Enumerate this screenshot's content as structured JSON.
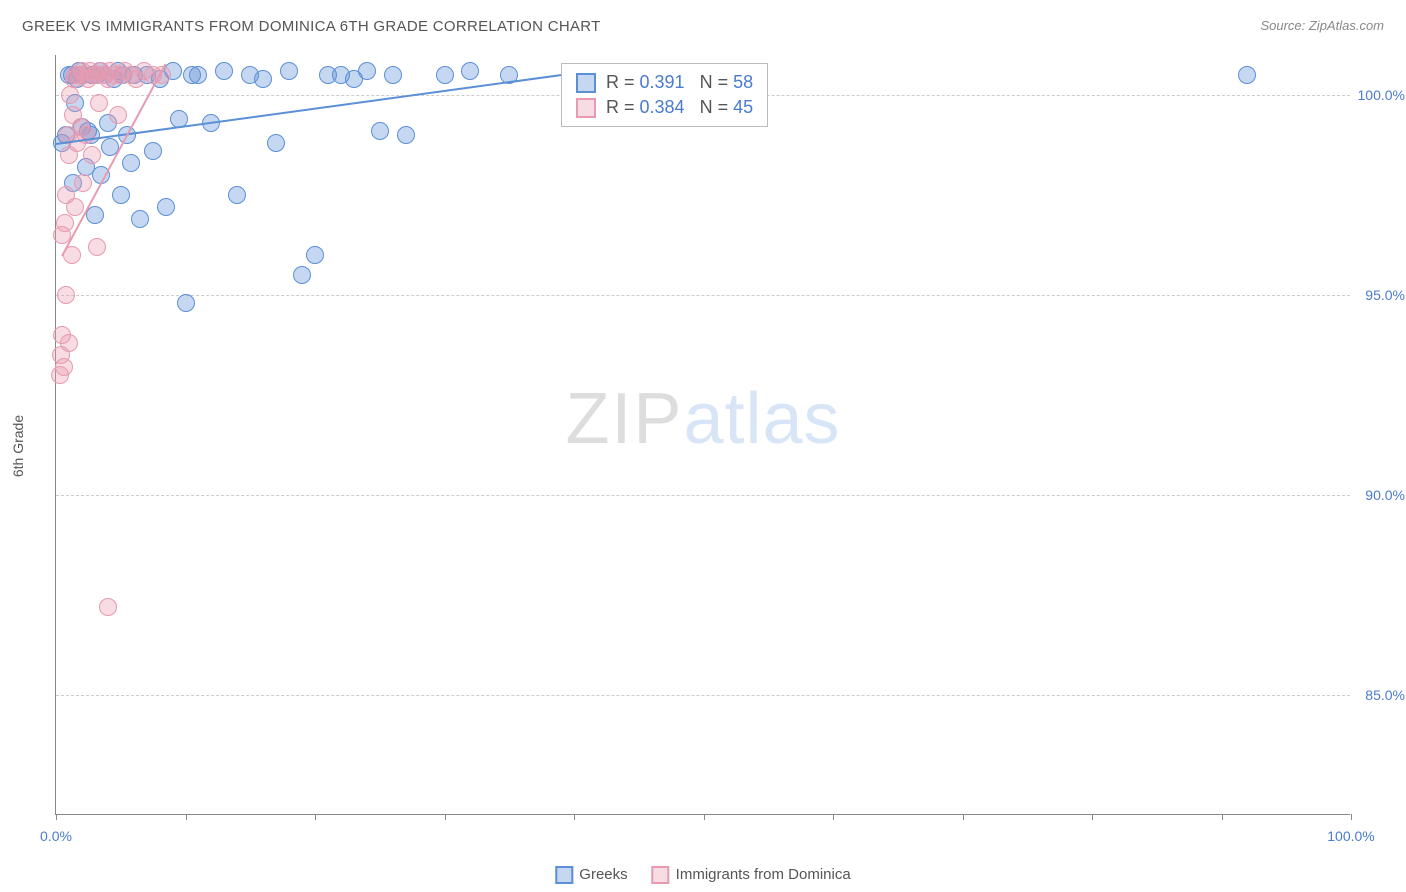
{
  "title": "GREEK VS IMMIGRANTS FROM DOMINICA 6TH GRADE CORRELATION CHART",
  "source": "Source: ZipAtlas.com",
  "y_axis_title": "6th Grade",
  "watermark": {
    "part1": "ZIP",
    "part2": "atlas"
  },
  "chart": {
    "type": "scatter",
    "background_color": "#ffffff",
    "grid_color": "#cccccc",
    "axis_color": "#888888",
    "x_range": [
      0,
      100
    ],
    "y_range": [
      82,
      101
    ],
    "y_ticks": [
      {
        "value": 85.0,
        "label": "85.0%"
      },
      {
        "value": 90.0,
        "label": "90.0%"
      },
      {
        "value": 95.0,
        "label": "95.0%"
      },
      {
        "value": 100.0,
        "label": "100.0%"
      }
    ],
    "x_ticks": [
      0,
      10,
      20,
      30,
      40,
      50,
      60,
      70,
      80,
      90,
      100
    ],
    "x_labels": [
      {
        "value": 0,
        "label": "0.0%"
      },
      {
        "value": 100,
        "label": "100.0%"
      }
    ],
    "marker_radius": 9,
    "marker_stroke_width": 1.5,
    "marker_fill_opacity": 0.35,
    "series": [
      {
        "name": "Greeks",
        "color": "#5b8fd6",
        "fill": "rgba(91,143,214,0.35)",
        "R": "0.391",
        "N": "58",
        "trend": {
          "x1": 0,
          "y1": 98.8,
          "x2": 43,
          "y2": 100.7
        },
        "points": [
          [
            0.5,
            98.8
          ],
          [
            0.8,
            99.0
          ],
          [
            1.0,
            100.5
          ],
          [
            1.2,
            100.5
          ],
          [
            1.3,
            97.8
          ],
          [
            1.5,
            99.8
          ],
          [
            1.6,
            100.4
          ],
          [
            1.8,
            100.6
          ],
          [
            2.0,
            99.2
          ],
          [
            2.1,
            100.5
          ],
          [
            2.3,
            98.2
          ],
          [
            2.5,
            99.1
          ],
          [
            2.7,
            99.0
          ],
          [
            2.8,
            100.5
          ],
          [
            3.0,
            97.0
          ],
          [
            3.2,
            100.5
          ],
          [
            3.4,
            100.6
          ],
          [
            3.5,
            98.0
          ],
          [
            3.8,
            100.5
          ],
          [
            4.0,
            99.3
          ],
          [
            4.2,
            98.7
          ],
          [
            4.5,
            100.4
          ],
          [
            4.8,
            100.6
          ],
          [
            5.0,
            97.5
          ],
          [
            5.2,
            100.5
          ],
          [
            5.5,
            99.0
          ],
          [
            5.8,
            98.3
          ],
          [
            6.0,
            100.5
          ],
          [
            6.5,
            96.9
          ],
          [
            7.0,
            100.5
          ],
          [
            7.5,
            98.6
          ],
          [
            8.0,
            100.4
          ],
          [
            8.5,
            97.2
          ],
          [
            9.0,
            100.6
          ],
          [
            9.5,
            99.4
          ],
          [
            10.0,
            94.8
          ],
          [
            10.5,
            100.5
          ],
          [
            11.0,
            100.5
          ],
          [
            12.0,
            99.3
          ],
          [
            13.0,
            100.6
          ],
          [
            14.0,
            97.5
          ],
          [
            15.0,
            100.5
          ],
          [
            16.0,
            100.4
          ],
          [
            17.0,
            98.8
          ],
          [
            18.0,
            100.6
          ],
          [
            19.0,
            95.5
          ],
          [
            20.0,
            96.0
          ],
          [
            21.0,
            100.5
          ],
          [
            22.0,
            100.5
          ],
          [
            23.0,
            100.4
          ],
          [
            24.0,
            100.6
          ],
          [
            25.0,
            99.1
          ],
          [
            26.0,
            100.5
          ],
          [
            27.0,
            99.0
          ],
          [
            30.0,
            100.5
          ],
          [
            32.0,
            100.6
          ],
          [
            35.0,
            100.5
          ],
          [
            92.0,
            100.5
          ]
        ]
      },
      {
        "name": "Immigrants from Dominica",
        "color": "#e89ab0",
        "fill": "rgba(232,154,176,0.35)",
        "R": "0.384",
        "N": "45",
        "trend": {
          "x1": 0.5,
          "y1": 96.0,
          "x2": 8.5,
          "y2": 100.8
        },
        "points": [
          [
            0.3,
            93.0
          ],
          [
            0.4,
            93.5
          ],
          [
            0.5,
            94.0
          ],
          [
            0.5,
            96.5
          ],
          [
            0.6,
            93.2
          ],
          [
            0.7,
            96.8
          ],
          [
            0.8,
            95.0
          ],
          [
            0.8,
            97.5
          ],
          [
            0.9,
            99.0
          ],
          [
            1.0,
            93.8
          ],
          [
            1.0,
            98.5
          ],
          [
            1.1,
            100.0
          ],
          [
            1.2,
            96.0
          ],
          [
            1.3,
            99.5
          ],
          [
            1.4,
            100.4
          ],
          [
            1.5,
            97.2
          ],
          [
            1.5,
            100.5
          ],
          [
            1.6,
            98.8
          ],
          [
            1.8,
            100.5
          ],
          [
            1.9,
            99.2
          ],
          [
            2.0,
            100.6
          ],
          [
            2.1,
            97.8
          ],
          [
            2.2,
            100.5
          ],
          [
            2.3,
            99.0
          ],
          [
            2.5,
            100.4
          ],
          [
            2.6,
            100.6
          ],
          [
            2.8,
            98.5
          ],
          [
            3.0,
            100.5
          ],
          [
            3.1,
            100.5
          ],
          [
            3.3,
            99.8
          ],
          [
            3.5,
            100.6
          ],
          [
            3.8,
            100.5
          ],
          [
            4.0,
            100.4
          ],
          [
            4.2,
            100.6
          ],
          [
            4.5,
            100.5
          ],
          [
            4.8,
            99.5
          ],
          [
            5.0,
            100.5
          ],
          [
            5.3,
            100.6
          ],
          [
            5.8,
            100.5
          ],
          [
            6.2,
            100.4
          ],
          [
            6.8,
            100.6
          ],
          [
            7.5,
            100.5
          ],
          [
            8.2,
            100.5
          ],
          [
            3.2,
            96.2
          ],
          [
            4.0,
            87.2
          ]
        ]
      }
    ],
    "legend": {
      "r_label": "R =",
      "n_label": "N ="
    },
    "bottom_legend": [
      {
        "label": "Greeks",
        "color": "#5b8fd6",
        "fill": "rgba(91,143,214,0.35)"
      },
      {
        "label": "Immigrants from Dominica",
        "color": "#e89ab0",
        "fill": "rgba(232,154,176,0.35)"
      }
    ]
  }
}
